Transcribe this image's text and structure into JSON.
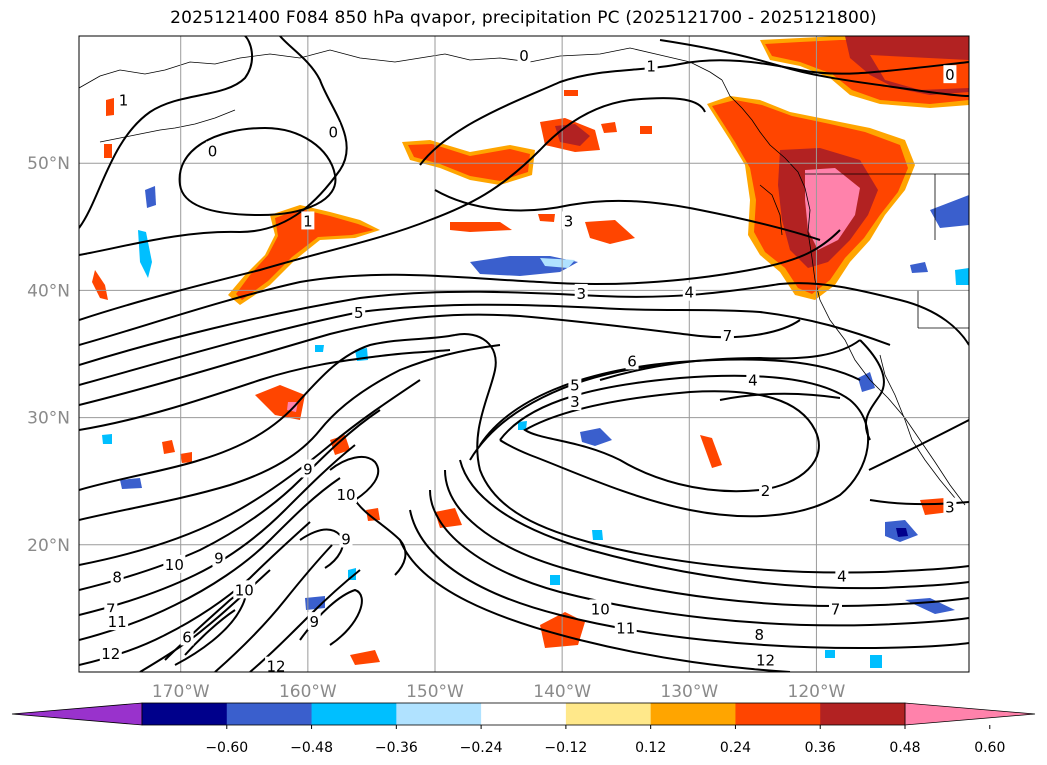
{
  "title": "2025121400 F084 850 hPa qvapor, precipitation PC (2025121700 - 2025121800)",
  "map": {
    "lon_range": [
      -178,
      -108
    ],
    "lat_range": [
      10,
      60
    ],
    "lat_ticks": [
      {
        "value": 20,
        "label": "20°N"
      },
      {
        "value": 30,
        "label": "30°N"
      },
      {
        "value": 40,
        "label": "40°N"
      },
      {
        "value": 50,
        "label": "50°N"
      }
    ],
    "lon_ticks": [
      {
        "value": -170,
        "label": "170°W"
      },
      {
        "value": -160,
        "label": "160°W"
      },
      {
        "value": -150,
        "label": "150°W"
      },
      {
        "value": -140,
        "label": "140°W"
      },
      {
        "value": -130,
        "label": "130°W"
      },
      {
        "value": -120,
        "label": "120°W"
      }
    ],
    "contour_labels": [
      {
        "text": "0",
        "lon": -167.5,
        "lat": 51.0
      },
      {
        "text": "0",
        "lon": -158.0,
        "lat": 52.5
      },
      {
        "text": "0",
        "lon": -143.0,
        "lat": 58.5
      },
      {
        "text": "0",
        "lon": -109.5,
        "lat": 57.0
      },
      {
        "text": "1",
        "lon": -174.5,
        "lat": 55.0
      },
      {
        "text": "1",
        "lon": -160.0,
        "lat": 45.5
      },
      {
        "text": "1",
        "lon": -133.0,
        "lat": 57.7
      },
      {
        "text": "3",
        "lon": -139.5,
        "lat": 45.5
      },
      {
        "text": "3",
        "lon": -138.5,
        "lat": 39.8
      },
      {
        "text": "3",
        "lon": -139.0,
        "lat": 31.3
      },
      {
        "text": "3",
        "lon": -109.5,
        "lat": 23.0
      },
      {
        "text": "4",
        "lon": -130.0,
        "lat": 39.9
      },
      {
        "text": "4",
        "lon": -125.0,
        "lat": 33.0
      },
      {
        "text": "4",
        "lon": -118.0,
        "lat": 17.6
      },
      {
        "text": "5",
        "lon": -156.0,
        "lat": 38.3
      },
      {
        "text": "5",
        "lon": -139.0,
        "lat": 32.6
      },
      {
        "text": "6",
        "lon": -134.5,
        "lat": 34.5
      },
      {
        "text": "7",
        "lon": -127.0,
        "lat": 36.5
      },
      {
        "text": "7",
        "lon": -175.5,
        "lat": 15.0
      },
      {
        "text": "7",
        "lon": -118.5,
        "lat": 15.0
      },
      {
        "text": "2",
        "lon": -124.0,
        "lat": 24.3
      },
      {
        "text": "8",
        "lon": -175.0,
        "lat": 17.5
      },
      {
        "text": "8",
        "lon": -124.5,
        "lat": 13.0
      },
      {
        "text": "9",
        "lon": -160.0,
        "lat": 26.0
      },
      {
        "text": "9",
        "lon": -157.0,
        "lat": 20.5
      },
      {
        "text": "9",
        "lon": -167.0,
        "lat": 19.0
      },
      {
        "text": "9",
        "lon": -159.5,
        "lat": 14.0
      },
      {
        "text": "10",
        "lon": -170.5,
        "lat": 18.5
      },
      {
        "text": "10",
        "lon": -165.0,
        "lat": 16.5
      },
      {
        "text": "10",
        "lon": -157.0,
        "lat": 24.0
      },
      {
        "text": "10",
        "lon": -137.0,
        "lat": 15.0
      },
      {
        "text": "11",
        "lon": -175.0,
        "lat": 14.0
      },
      {
        "text": "11",
        "lon": -135.0,
        "lat": 13.5
      },
      {
        "text": "12",
        "lon": -175.5,
        "lat": 11.5
      },
      {
        "text": "12",
        "lon": -124.0,
        "lat": 11.0
      },
      {
        "text": "12",
        "lon": -162.5,
        "lat": 10.5
      },
      {
        "text": "6",
        "lon": -169.5,
        "lat": 12.8
      }
    ]
  },
  "colorbar": {
    "colors": [
      "#9932cc",
      "#00008b",
      "#3a5fcd",
      "#00bfff",
      "#b0e2ff",
      "#ffffff",
      "#ffe88a",
      "#ffa500",
      "#ff4500",
      "#b22222",
      "#ff82ab"
    ],
    "tick_labels": [
      "−0.60",
      "−0.48",
      "−0.36",
      "−0.24",
      "−0.12",
      "0.12",
      "0.24",
      "0.36",
      "0.48",
      "0.60"
    ]
  }
}
